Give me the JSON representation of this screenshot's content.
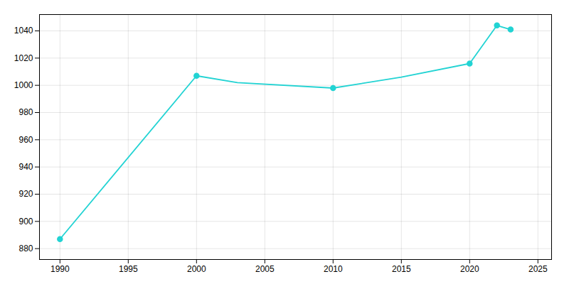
{
  "chart_data": {
    "type": "line",
    "series": [
      {
        "type": "line",
        "color": "#22d3d3",
        "x": [
          1990,
          2000,
          2003,
          2010,
          2015,
          2020,
          2022,
          2023
        ],
        "values": [
          887,
          1007,
          1002,
          998,
          1006,
          1016,
          1044,
          1041
        ]
      },
      {
        "type": "scatter",
        "marker": "circle",
        "color": "#22d3d3",
        "x": [
          1990,
          2000,
          2010,
          2020,
          2022,
          2023
        ],
        "values": [
          887,
          1007,
          998,
          1016,
          1044,
          1041
        ]
      }
    ],
    "xlim": [
      1988.5,
      2026
    ],
    "xticks": [
      1990,
      1995,
      2000,
      2005,
      2010,
      2015,
      2020,
      2025
    ],
    "ylim": [
      872,
      1052
    ],
    "yticks": [
      880,
      900,
      920,
      940,
      960,
      980,
      1000,
      1020,
      1040
    ],
    "grid": true
  }
}
